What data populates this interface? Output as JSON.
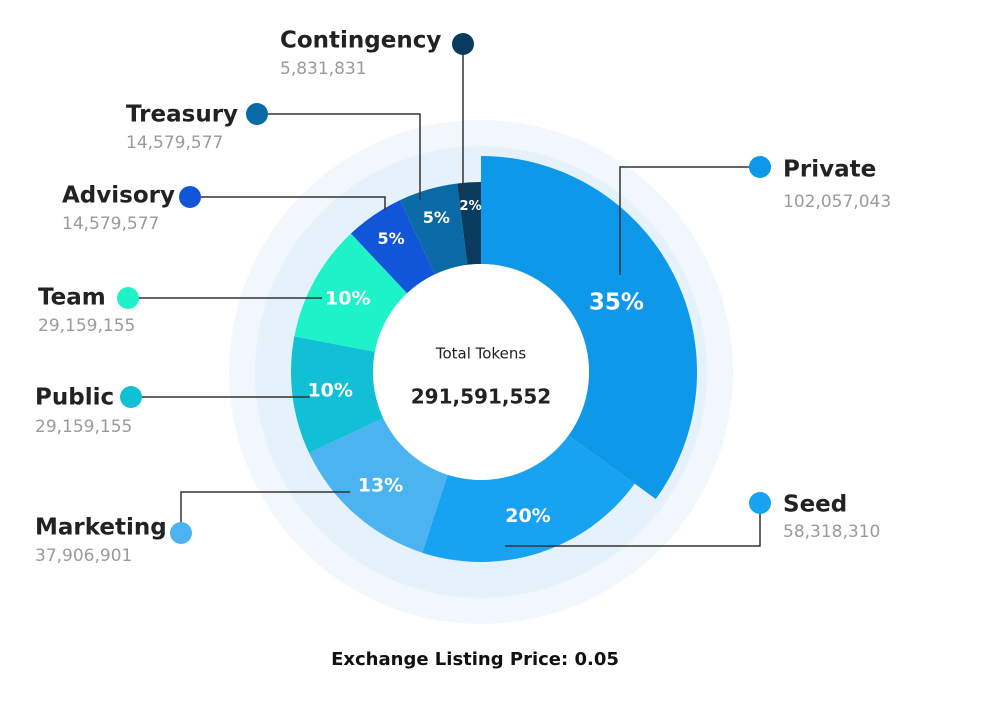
{
  "chart_data": {
    "type": "donut",
    "categories": [
      "Private",
      "Seed",
      "Marketing",
      "Public",
      "Team",
      "Advisory",
      "Treasury",
      "Contingency"
    ],
    "values": [
      35,
      20,
      13,
      10,
      10,
      5,
      5,
      2
    ],
    "value_labels": [
      "35%",
      "20%",
      "13%",
      "10%",
      "10%",
      "5%",
      "5%",
      "2%"
    ],
    "amounts": [
      {
        "value": 102057043,
        "label": "102,057,043"
      },
      {
        "value": 58318310,
        "label": "58,318,310"
      },
      {
        "value": 37906901,
        "label": "37,906,901"
      },
      {
        "value": 29159155,
        "label": "29,159,155"
      },
      {
        "value": 29159155,
        "label": "29,159,155"
      },
      {
        "value": 14579577,
        "label": "14,579,577"
      },
      {
        "value": 14579577,
        "label": "14,579,577"
      },
      {
        "value": 5831831,
        "label": "5,831,831"
      }
    ],
    "colors": [
      "#0d98ea",
      "#17a2f2",
      "#4bb4f0",
      "#12c0d6",
      "#1ef2c9",
      "#1155d8",
      "#0a6aa6",
      "#083b5e"
    ],
    "center_title": "Total Tokens",
    "total": {
      "value": 291591552,
      "label": "291,591,552"
    },
    "footer": "Exchange Listing Price: 0.05"
  }
}
